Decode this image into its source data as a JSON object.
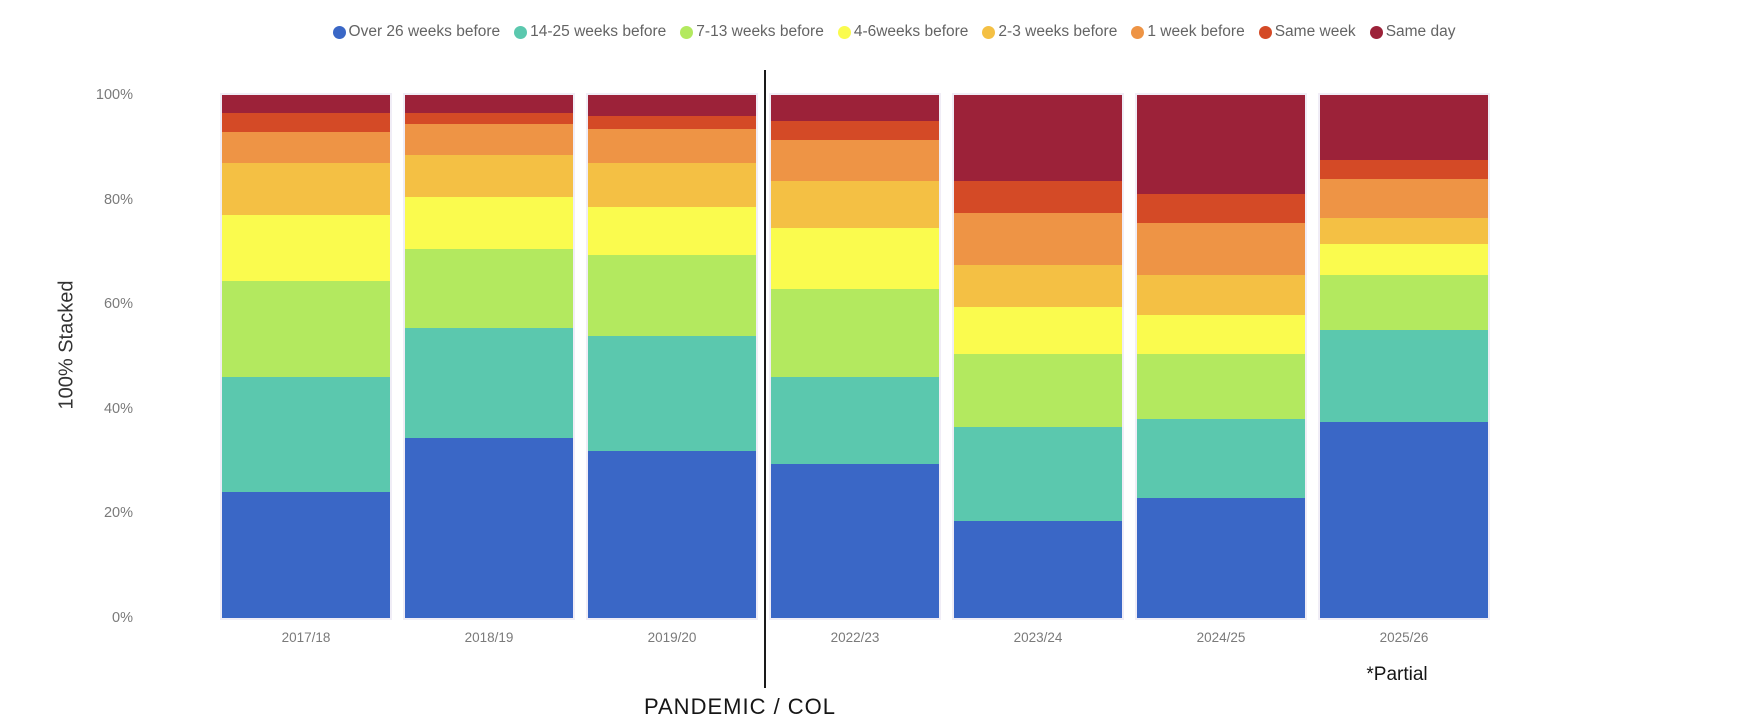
{
  "chart_data": {
    "type": "bar",
    "stacking": "percent",
    "title": "",
    "ylabel": "100% Stacked",
    "grid": false,
    "legend_position": "top-center",
    "ylim": [
      0,
      100
    ],
    "yticks": [
      {
        "value": 0,
        "label": "0%"
      },
      {
        "value": 20,
        "label": "20%"
      },
      {
        "value": 40,
        "label": "40%"
      },
      {
        "value": 60,
        "label": "60%"
      },
      {
        "value": 80,
        "label": "80%"
      },
      {
        "value": 100,
        "label": "100%"
      }
    ],
    "categories": [
      "2017/18",
      "2018/19",
      "2019/20",
      "2022/23",
      "2023/24",
      "2024/25",
      "2025/26"
    ],
    "series": [
      {
        "name": "Over 26 weeks before",
        "color": "#3A67C6",
        "values": [
          24,
          34.5,
          32,
          29.5,
          18.5,
          23,
          37.5
        ]
      },
      {
        "name": "14-25 weeks before",
        "color": "#5BC8AE",
        "values": [
          22,
          21,
          22,
          16.5,
          18,
          15,
          17.5
        ]
      },
      {
        "name": "7-13 weeks before",
        "color": "#B3E95F",
        "values": [
          18.5,
          15,
          15.5,
          17,
          14,
          12.5,
          10.5
        ]
      },
      {
        "name": "4-6weeks before",
        "color": "#FAFB4E",
        "values": [
          12.5,
          10,
          9,
          11.5,
          9,
          7.5,
          6
        ]
      },
      {
        "name": "2-3 weeks before",
        "color": "#F4C044",
        "values": [
          10,
          8,
          8.5,
          9,
          8,
          7.5,
          5
        ]
      },
      {
        "name": "1 week before",
        "color": "#EE9445",
        "values": [
          6,
          6,
          6.5,
          8,
          10,
          10,
          7.5
        ]
      },
      {
        "name": "Same week",
        "color": "#D44A26",
        "values": [
          3.5,
          2,
          2.5,
          3.5,
          6,
          5.5,
          3.5
        ]
      },
      {
        "name": "Same day",
        "color": "#9C2239",
        "values": [
          3.5,
          3.5,
          4,
          5,
          16.5,
          19,
          12.5
        ]
      }
    ],
    "annotations": {
      "pandemic": "PANDEMIC / COL",
      "partial": "*Partial"
    },
    "divider_after_category": "2019/20"
  }
}
